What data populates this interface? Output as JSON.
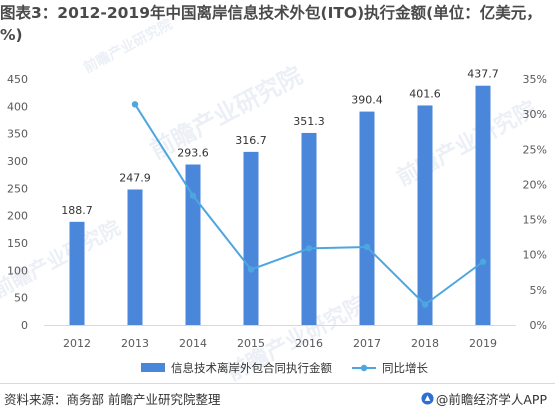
{
  "title": "图表3：2012-2019年中国离岸信息技术外包(ITO)执行金额(单位：亿美元，%)",
  "source": "资料来源：商务部 前瞻产业研究院整理",
  "brand": "@前瞻经济学人APP",
  "watermark": "前瞻产业研究院",
  "colors": {
    "bar": "#4a86d9",
    "line": "#4da6df",
    "axis_text": "#595959",
    "grid": "#d9d9d9"
  },
  "chart_data": {
    "type": "bar+line",
    "categories": [
      "2012",
      "2013",
      "2014",
      "2015",
      "2016",
      "2017",
      "2018",
      "2019"
    ],
    "series": [
      {
        "name": "信息技术离岸外包合同执行金额",
        "type": "bar",
        "axis": "left",
        "values": [
          188.7,
          247.9,
          293.6,
          316.7,
          351.3,
          390.4,
          401.6,
          437.7
        ]
      },
      {
        "name": "同比增长",
        "type": "line",
        "axis": "right",
        "values": [
          null,
          31.4,
          18.4,
          7.9,
          10.9,
          11.1,
          2.9,
          9.0
        ]
      }
    ],
    "data_labels": [
      "188.7",
      "247.9",
      "293.6",
      "316.7",
      "351.3",
      "390.4",
      "401.6",
      "437.7"
    ],
    "left_axis": {
      "min": 0,
      "max": 450,
      "step": 50,
      "ticks": [
        "0",
        "50",
        "100",
        "150",
        "200",
        "250",
        "300",
        "350",
        "400",
        "450"
      ]
    },
    "right_axis": {
      "min": 0,
      "max": 35,
      "step": 5,
      "ticks": [
        "0%",
        "5%",
        "10%",
        "15%",
        "20%",
        "25%",
        "30%",
        "35%"
      ]
    },
    "legend_position": "bottom",
    "grid": false
  }
}
